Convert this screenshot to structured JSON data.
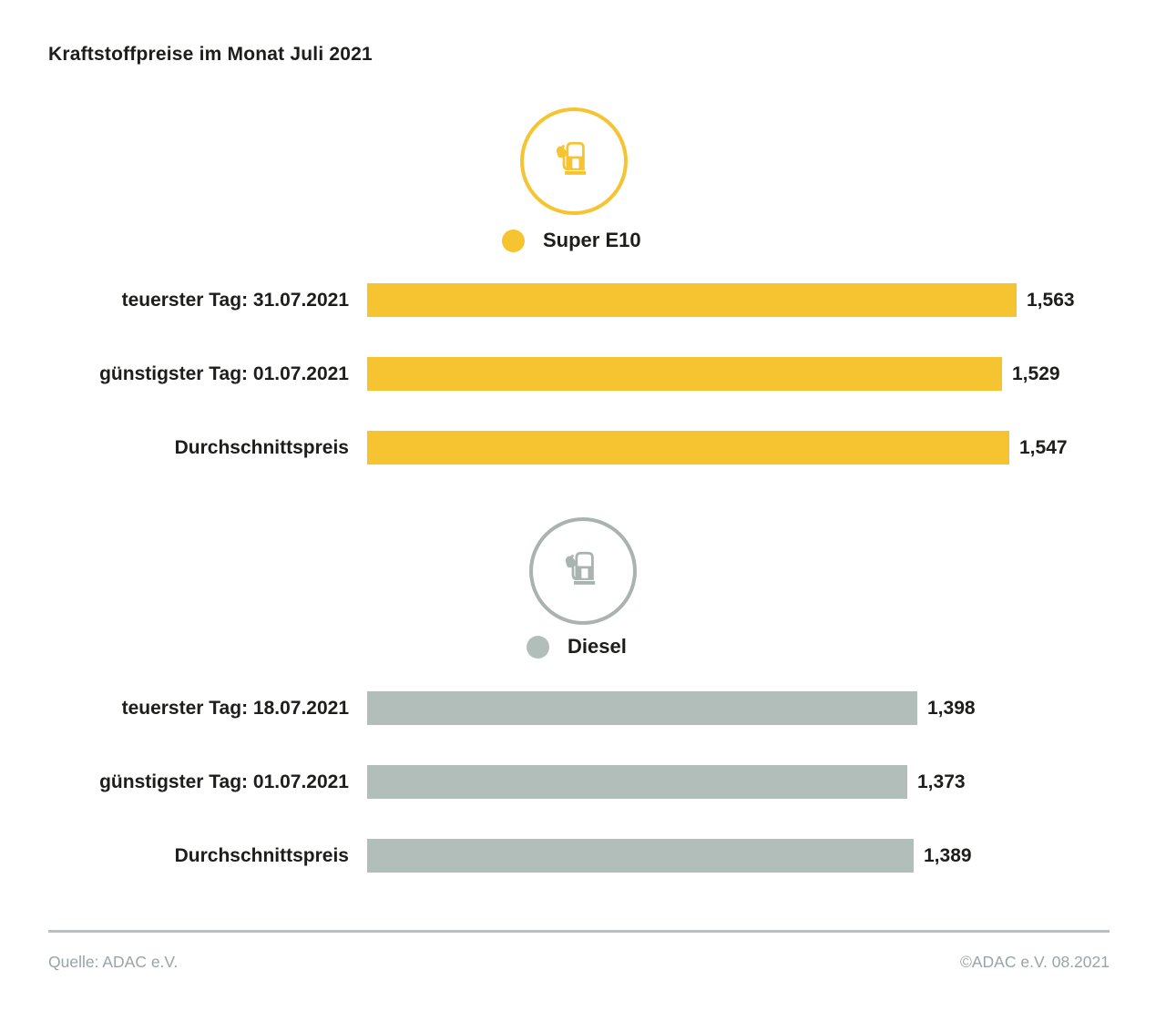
{
  "title": "Kraftstoffpreise im Monat Juli 2021",
  "colors": {
    "super_e10_yellow": "#F6C331",
    "diesel_gray": "#B2BEBA",
    "diesel_icon_gray": "#A9B3B0",
    "footer_text_gray": "#97A4A9",
    "text_black": "#1D1D1B"
  },
  "chart_data": [
    {
      "type": "bar",
      "orientation": "horizontal",
      "series_name": "Super E10",
      "legend_label": "Super E10",
      "bar_color": "#F6C331",
      "icon": "fuel-pump-icon",
      "categories": [
        "teuerster Tag: 31.07.2021",
        "günstigster Tag: 01.07.2021",
        "Durchschnittspreis"
      ],
      "values": [
        1.563,
        1.529,
        1.547
      ],
      "value_labels": [
        "1,563",
        "1,529",
        "1,547"
      ],
      "value_label_position": "end",
      "grid": false
    },
    {
      "type": "bar",
      "orientation": "horizontal",
      "series_name": "Diesel",
      "legend_label": "Diesel",
      "bar_color": "#B2BEBA",
      "icon": "fuel-pump-icon",
      "categories": [
        "teuerster Tag: 18.07.2021",
        "günstigster Tag: 01.07.2021",
        "Durchschnittspreis"
      ],
      "values": [
        1.398,
        1.373,
        1.389
      ],
      "value_labels": [
        "1,398",
        "1,373",
        "1,389"
      ],
      "value_label_position": "end",
      "grid": false
    }
  ],
  "footer": {
    "source": "Quelle: ADAC e.V.",
    "copyright": "©ADAC e.V. 08.2021"
  }
}
